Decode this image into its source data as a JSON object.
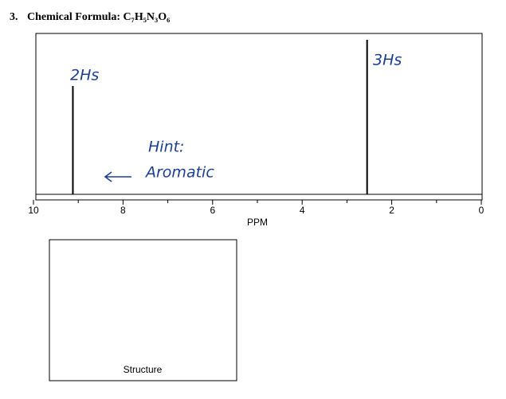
{
  "chart_data": {
    "type": "stem",
    "number": "3.",
    "title": "Chemical Formula: C₇H₅N₃O₆",
    "xlabel": "PPM",
    "x": [
      9.12,
      2.55
    ],
    "values": [
      0.68,
      0.97
    ],
    "xlim": [
      10,
      0
    ],
    "ylim": [
      0,
      1
    ],
    "xticks": [
      10,
      8,
      6,
      4,
      2,
      0
    ],
    "xminor_ticks": [
      9,
      7,
      5,
      3,
      1
    ],
    "color": "#000000",
    "annotations": [
      "2Hs",
      "3Hs",
      "Hint:",
      "Aromatic"
    ],
    "box_label": "Structure"
  }
}
